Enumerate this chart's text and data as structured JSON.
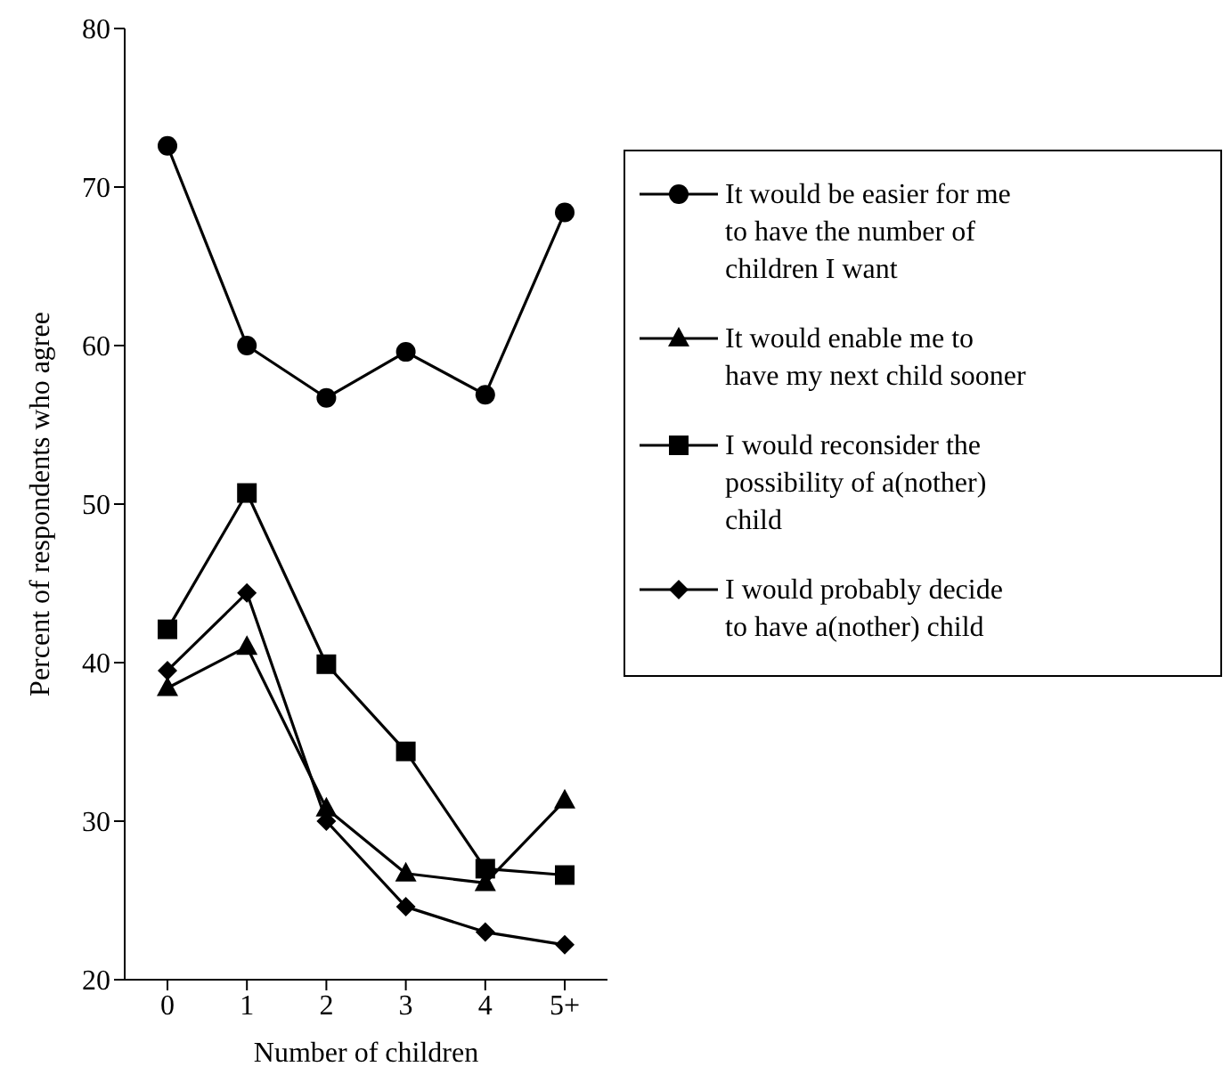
{
  "chart_data": {
    "type": "line",
    "xlabel": "Number of children",
    "ylabel": "Percent of respondents who agree",
    "categories": [
      "0",
      "1",
      "2",
      "3",
      "4",
      "5+"
    ],
    "ylim": [
      20,
      80
    ],
    "yticks": [
      20,
      30,
      40,
      50,
      60,
      70,
      80
    ],
    "grid": false,
    "legend": "right",
    "line_style": "solid",
    "series": [
      {
        "name": "It would be easier for me to have the number of children I want",
        "color": "#000000",
        "marker": "circle",
        "values": [
          72.6,
          60,
          56.7,
          59.6,
          56.9,
          68.4
        ]
      },
      {
        "name": "It would enable me to have my next child sooner",
        "color": "#000000",
        "marker": "triangle",
        "values": [
          38.4,
          41,
          30.8,
          26.7,
          26.1,
          31.3
        ]
      },
      {
        "name": "I would reconsider the possibility of a(nother) child",
        "color": "#000000",
        "marker": "square",
        "values": [
          42.1,
          50.7,
          39.9,
          34.4,
          27.0,
          26.6
        ]
      },
      {
        "name": "I would probably decide to have a(nother) child",
        "color": "#000000",
        "marker": "diamond",
        "values": [
          39.5,
          44.4,
          30.0,
          24.6,
          23.0,
          22.2
        ]
      }
    ]
  }
}
